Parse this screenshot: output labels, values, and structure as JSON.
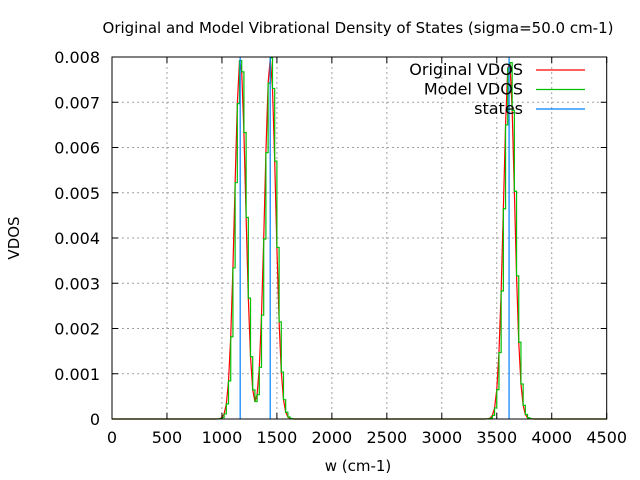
{
  "chart_data": {
    "type": "line",
    "title": "Original and Model Vibrational Density of States (sigma=50.0 cm-1)",
    "xlabel": "w (cm-1)",
    "ylabel": "VDOS",
    "xlim": [
      0,
      4500
    ],
    "ylim": [
      0,
      0.008
    ],
    "xticks": [
      "0",
      "500",
      "1000",
      "1500",
      "2000",
      "2500",
      "3000",
      "3500",
      "4000",
      "4500"
    ],
    "xtick_values": [
      0,
      500,
      1000,
      1500,
      2000,
      2500,
      3000,
      3500,
      4000,
      4500
    ],
    "yticks": [
      "0",
      "0.001",
      "0.002",
      "0.003",
      "0.004",
      "0.005",
      "0.006",
      "0.007",
      "0.008"
    ],
    "ytick_values": [
      0,
      0.001,
      0.002,
      0.003,
      0.004,
      0.005,
      0.006,
      0.007,
      0.008
    ],
    "grid": true,
    "legend_position": "top-right",
    "sigma": 50.0,
    "states": [
      1166,
      1439,
      3612
    ],
    "series": [
      {
        "name": "Original VDOS",
        "color": "#ff0000",
        "kind": "gaussian-sum",
        "step": 20
      },
      {
        "name": "Model VDOS",
        "color": "#00c000",
        "kind": "gaussian-sum-step",
        "step": 20
      },
      {
        "name": "states",
        "color": "#0080ff",
        "kind": "impulses"
      }
    ]
  }
}
